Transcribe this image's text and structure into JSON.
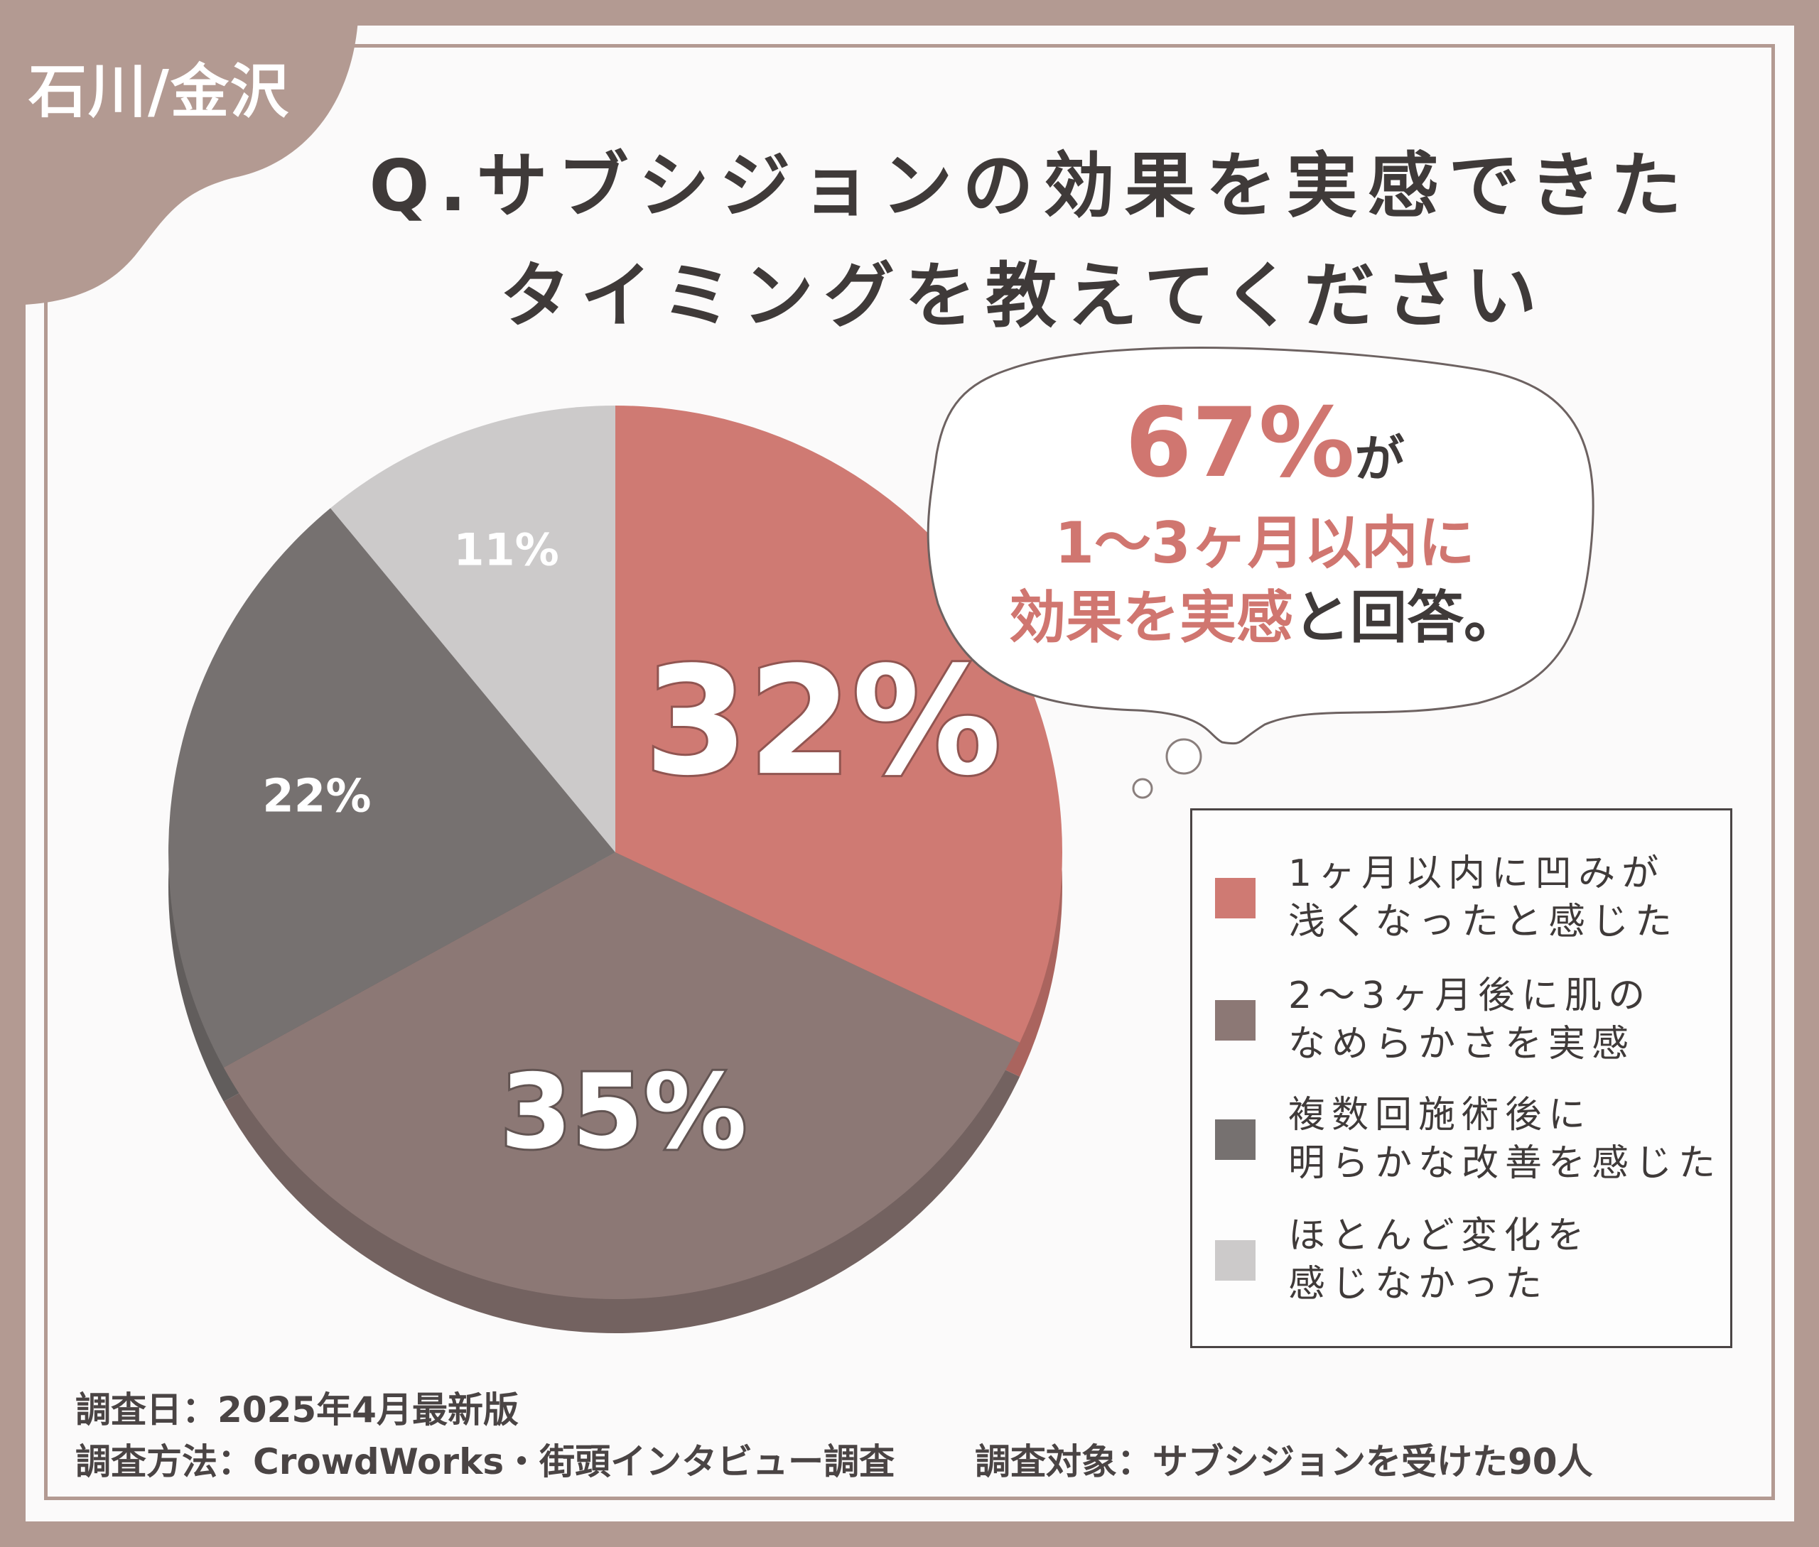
{
  "region_label": "石川/金沢",
  "title": {
    "line1": "Q.サブシジョンの効果を実感できた",
    "line2": "タイミングを教えてください"
  },
  "callout": {
    "pct": "67%",
    "suffix": "が",
    "line2": "1〜3ヶ月以内に",
    "line3_highlight": "効果を実感",
    "line3_rest": "と回答。"
  },
  "chart_data": {
    "type": "pie",
    "title": "Q.サブシジョンの効果を実感できたタイミングを教えてください",
    "slices": [
      {
        "label": "1ヶ月以内に凹みが浅くなったと感じた",
        "value": 32,
        "display": "32%",
        "color": "#cf7a73"
      },
      {
        "label": "2〜3ヶ月後に肌のなめらかさを実感",
        "value": 35,
        "display": "35%",
        "color": "#8c7875"
      },
      {
        "label": "複数回施術後に明らかな改善を感じた",
        "value": 22,
        "display": "22%",
        "color": "#767170"
      },
      {
        "label": "ほとんど変化を感じなかった",
        "value": 11,
        "display": "11%",
        "color": "#cccaca"
      }
    ],
    "start": "top",
    "direction": "clockwise",
    "legend_position": "right"
  },
  "legend": [
    {
      "line1": "1ヶ月以内に凹みが",
      "line2": "浅くなったと感じた"
    },
    {
      "line1": "2〜3ヶ月後に肌の",
      "line2": "なめらかさを実感"
    },
    {
      "line1": "複数回施術後に",
      "line2": "明らかな改善を感じた"
    },
    {
      "line1": "ほとんど変化を",
      "line2": "感じなかった"
    }
  ],
  "footer": {
    "date": "調査日：2025年4月最新版",
    "method": "調査方法：CrowdWorks・街頭インタビュー調査",
    "target": "調査対象：サブシジョンを受けた90人"
  }
}
